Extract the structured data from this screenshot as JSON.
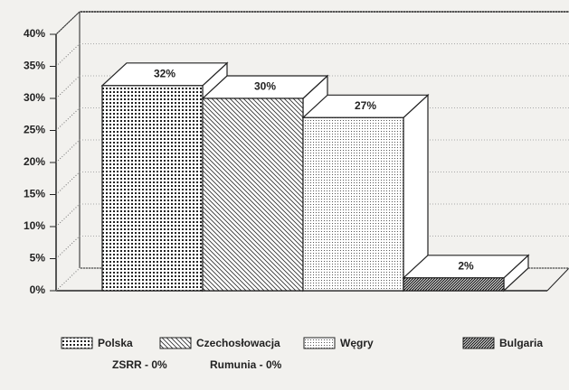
{
  "chart_data": {
    "type": "bar3d",
    "categories": [
      "Polska",
      "Czechosłowacja",
      "Węgry",
      "Bulgaria"
    ],
    "values": [
      32,
      30,
      27,
      2
    ],
    "value_labels": [
      "32%",
      "30%",
      "27%",
      "2%"
    ],
    "patterns": [
      "grid-dots",
      "back-diagonal",
      "fine-dots",
      "dense-diagonal"
    ],
    "ylim": [
      0,
      40
    ],
    "yticks": [
      {
        "value": 0,
        "label": "0%"
      },
      {
        "value": 5,
        "label": "5%"
      },
      {
        "value": 10,
        "label": "10%"
      },
      {
        "value": 15,
        "label": "15%"
      },
      {
        "value": 20,
        "label": "20%"
      },
      {
        "value": 25,
        "label": "25%"
      },
      {
        "value": 30,
        "label": "30%"
      },
      {
        "value": 35,
        "label": "35%"
      },
      {
        "value": 40,
        "label": "40%"
      }
    ],
    "grid": true,
    "annotations": [
      "ZSRR - 0%",
      "Rumunia - 0%"
    ]
  }
}
